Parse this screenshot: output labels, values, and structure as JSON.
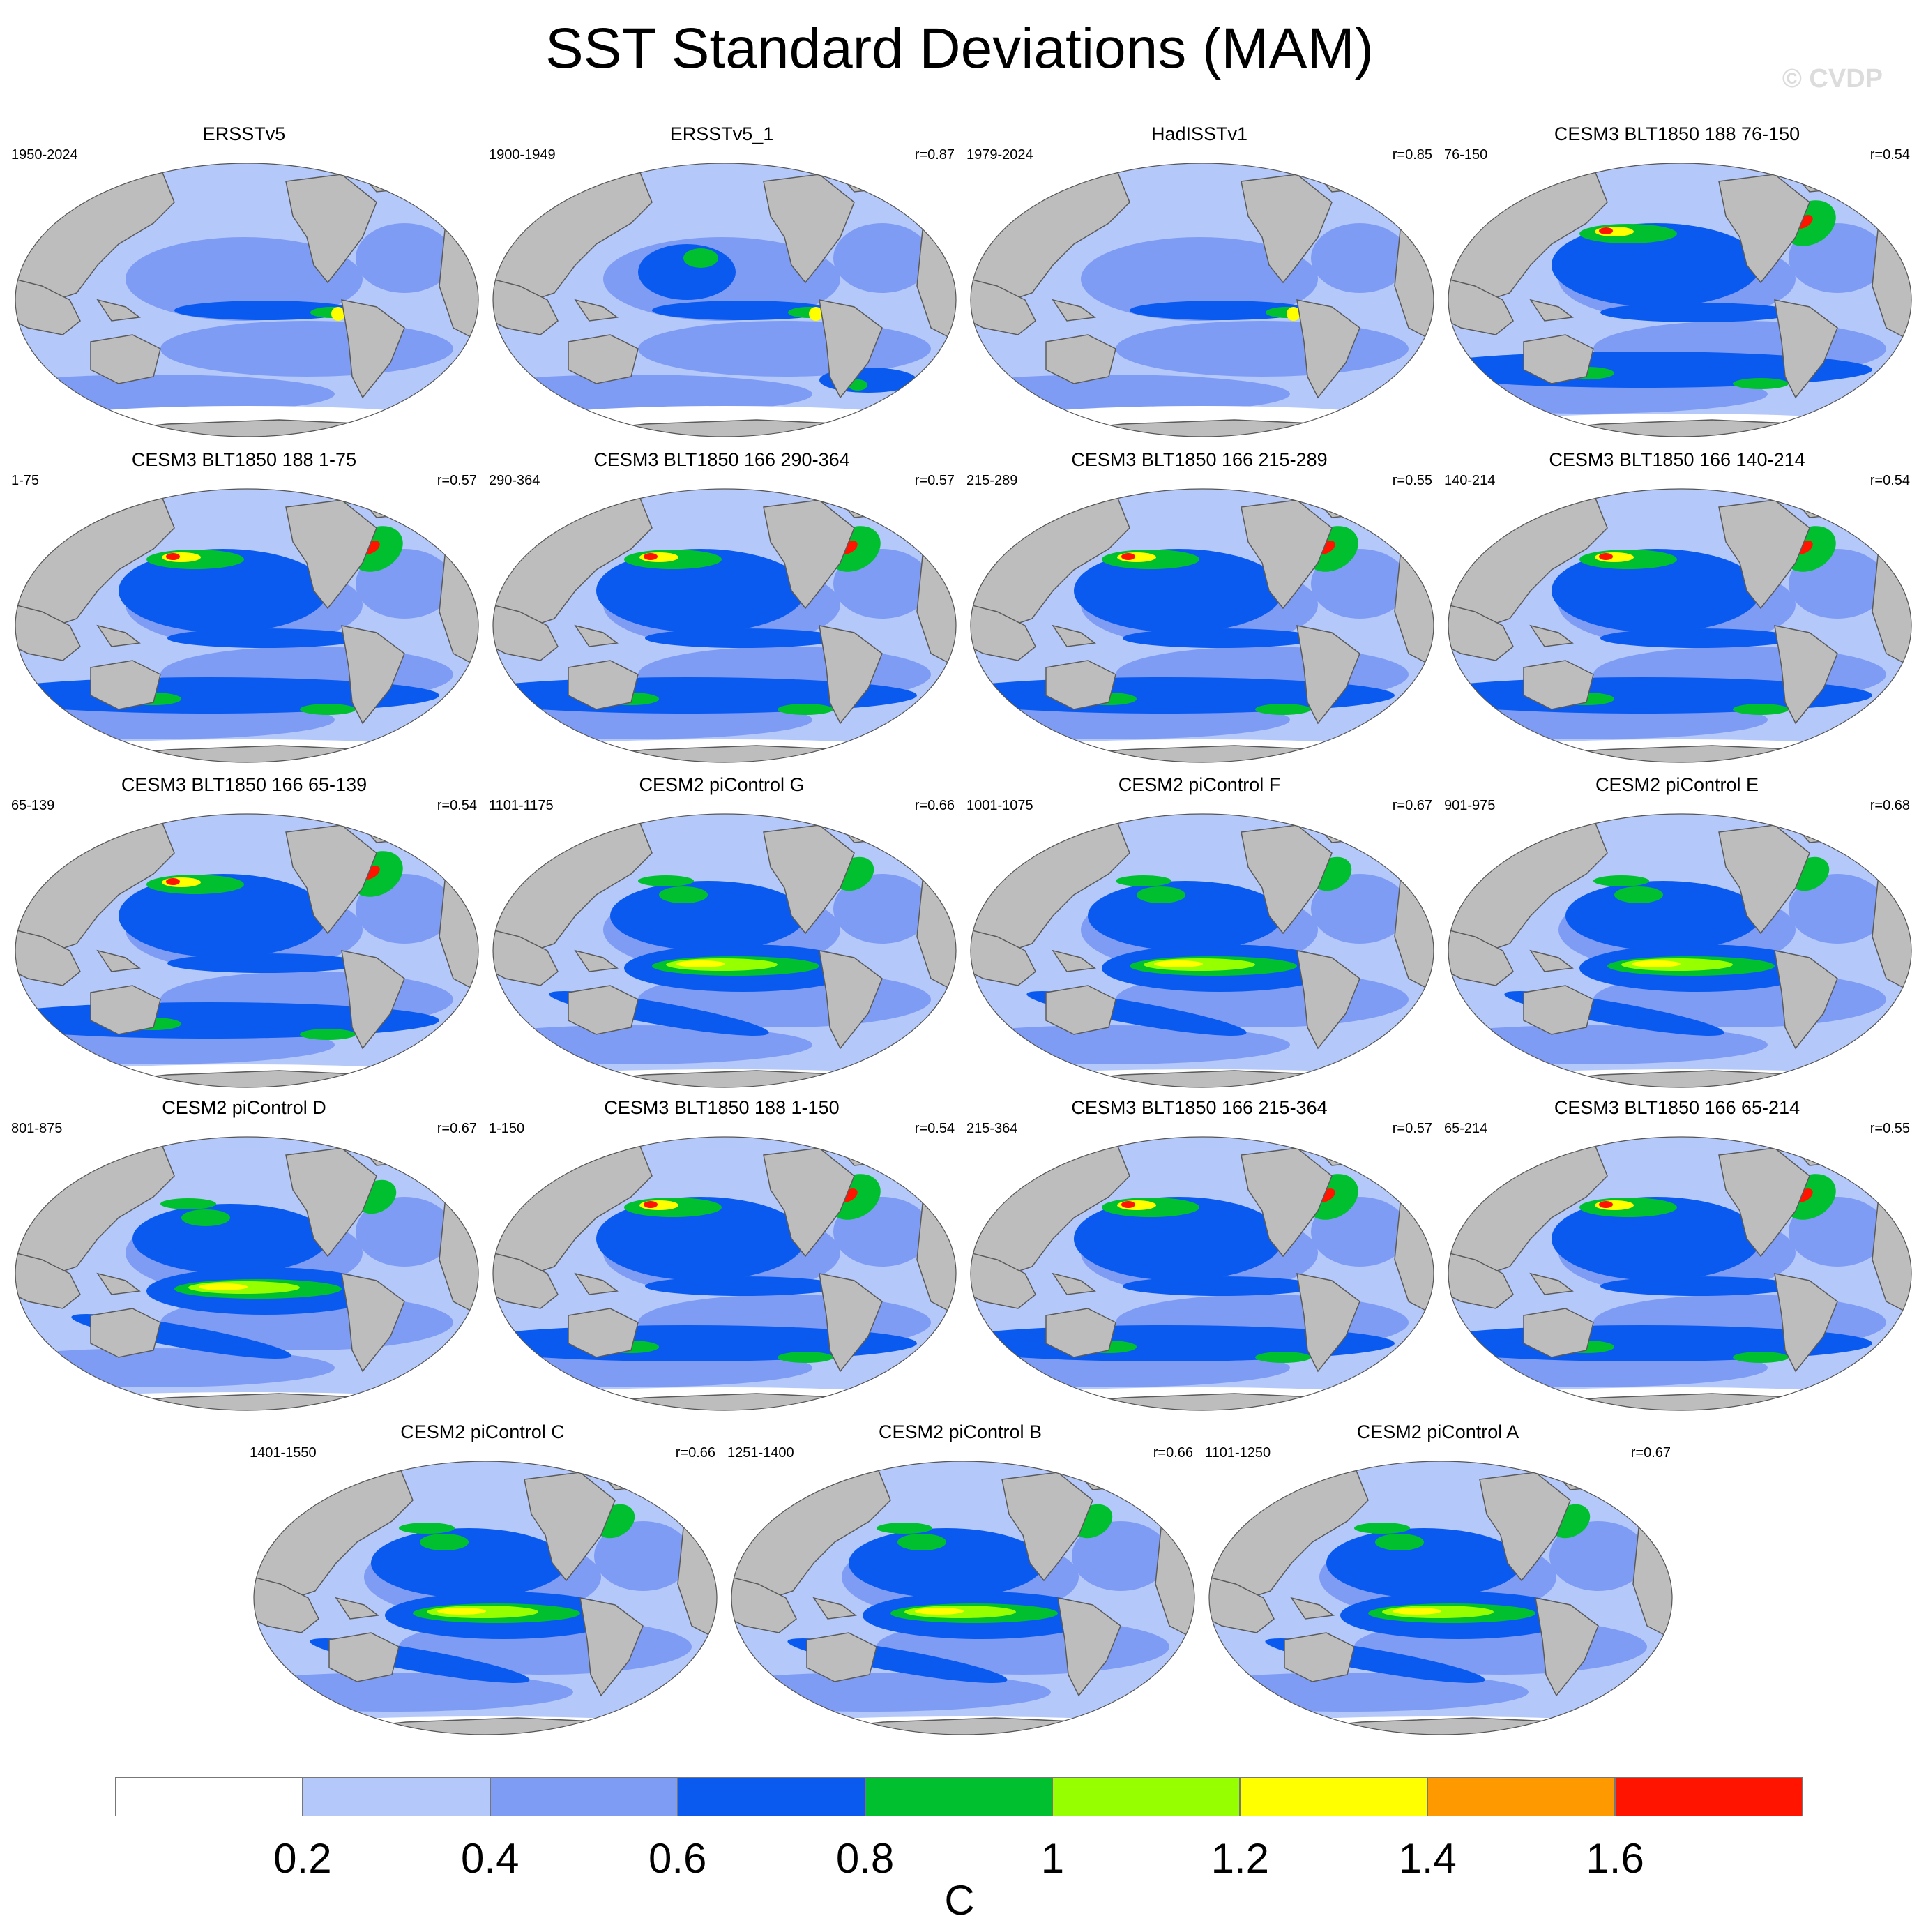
{
  "title": "SST Standard Deviations (MAM)",
  "watermark": "© CVDP",
  "colors": {
    "land": "#bdbdbd",
    "land_edge": "#5a5a5a",
    "levels": [
      "#ffffff",
      "#b4c8fa",
      "#7f9cf5",
      "#0a5af0",
      "#00c030",
      "#96ff00",
      "#ffff00",
      "#ff9900",
      "#ff1400"
    ]
  },
  "panels": [
    {
      "title": "ERSSTv5",
      "period": "1950-2024",
      "corr": "",
      "variant": "obs"
    },
    {
      "title": "ERSSTv5_1",
      "period": "1900-1949",
      "corr": "r=0.87",
      "variant": "obs2"
    },
    {
      "title": "HadISSTv1",
      "period": "1979-2024",
      "corr": "r=0.85",
      "variant": "had"
    },
    {
      "title": "CESM3 BLT1850 188 76-150",
      "period": "76-150",
      "corr": "r=0.54",
      "variant": "cesm3"
    },
    {
      "title": "CESM3 BLT1850 188 1-75",
      "period": "1-75",
      "corr": "r=0.57",
      "variant": "cesm3"
    },
    {
      "title": "CESM3 BLT1850 166 290-364",
      "period": "290-364",
      "corr": "r=0.57",
      "variant": "cesm3"
    },
    {
      "title": "CESM3 BLT1850 166 215-289",
      "period": "215-289",
      "corr": "r=0.55",
      "variant": "cesm3"
    },
    {
      "title": "CESM3 BLT1850 166 140-214",
      "period": "140-214",
      "corr": "r=0.54",
      "variant": "cesm3"
    },
    {
      "title": "CESM3 BLT1850 166 65-139",
      "period": "65-139",
      "corr": "r=0.54",
      "variant": "cesm3"
    },
    {
      "title": "CESM2 piControl G",
      "period": "1101-1175",
      "corr": "r=0.66",
      "variant": "cesm2"
    },
    {
      "title": "CESM2 piControl F",
      "period": "1001-1075",
      "corr": "r=0.67",
      "variant": "cesm2"
    },
    {
      "title": "CESM2 piControl E",
      "period": "901-975",
      "corr": "r=0.68",
      "variant": "cesm2"
    },
    {
      "title": "CESM2 piControl D",
      "period": "801-875",
      "corr": "r=0.67",
      "variant": "cesm2"
    },
    {
      "title": "CESM3 BLT1850 188 1-150",
      "period": "1-150",
      "corr": "r=0.54",
      "variant": "cesm3"
    },
    {
      "title": "CESM3 BLT1850 166 215-364",
      "period": "215-364",
      "corr": "r=0.57",
      "variant": "cesm3"
    },
    {
      "title": "CESM3 BLT1850 166 65-214",
      "period": "65-214",
      "corr": "r=0.55",
      "variant": "cesm3"
    },
    {
      "title": "CESM2 piControl C",
      "period": "1401-1550",
      "corr": "r=0.66",
      "variant": "cesm2"
    },
    {
      "title": "CESM2 piControl B",
      "period": "1251-1400",
      "corr": "r=0.66",
      "variant": "cesm2"
    },
    {
      "title": "CESM2 piControl A",
      "period": "1101-1250",
      "corr": "r=0.67",
      "variant": "cesm2"
    }
  ],
  "colorbar": {
    "labels": [
      "0.2",
      "0.4",
      "0.6",
      "0.8",
      "1",
      "1.2",
      "1.4",
      "1.6"
    ],
    "units": "C"
  }
}
